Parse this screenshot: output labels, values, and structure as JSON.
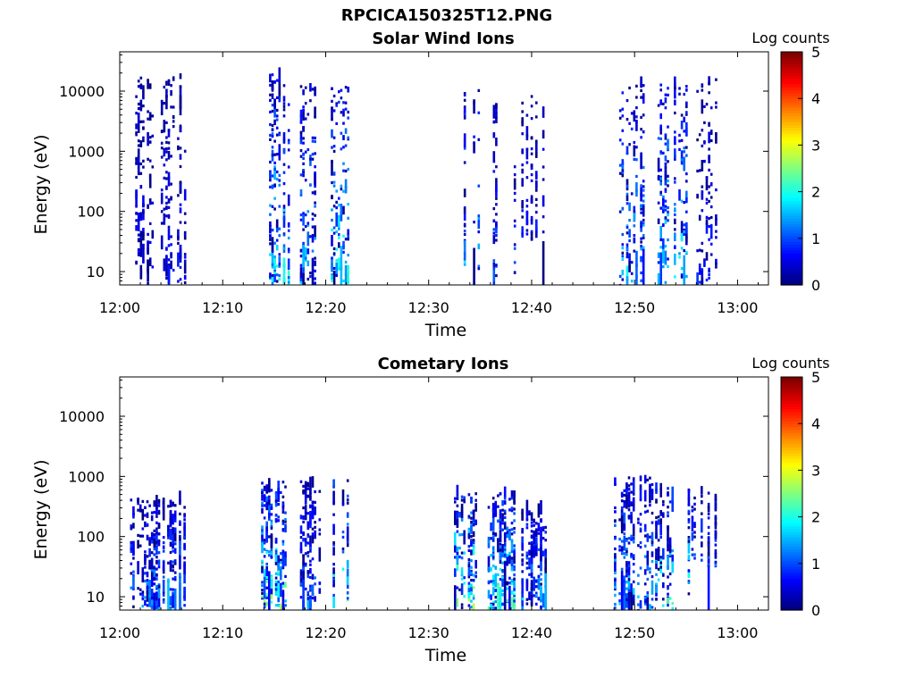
{
  "figure_title": "RPCICA150325T12.PNG",
  "chart_data": [
    {
      "type": "heatmap",
      "title": "Solar Wind Ions",
      "xlabel": "Time",
      "ylabel": "Energy (eV)",
      "x_ticks": [
        "12:00",
        "12:10",
        "12:20",
        "12:30",
        "12:40",
        "12:50",
        "13:00"
      ],
      "x_range_min": [
        0,
        63
      ],
      "y_scale": "log",
      "y_ticks": [
        10,
        100,
        1000,
        10000
      ],
      "ylim": [
        6,
        45000
      ],
      "colorbar": {
        "label": "Log counts",
        "ticks": [
          0,
          1,
          2,
          3,
          4,
          5
        ],
        "range": [
          0,
          5
        ],
        "colormap": "jet"
      },
      "bursts": [
        {
          "t": [
            1.5,
            6.5
          ],
          "e": [
            6,
            16000
          ],
          "max": 0.8
        },
        {
          "t": [
            14.5,
            16.5
          ],
          "e": [
            6,
            20000
          ],
          "max": 2.2
        },
        {
          "t": [
            17.5,
            19.5
          ],
          "e": [
            6,
            12000
          ],
          "max": 1.8
        },
        {
          "t": [
            20.5,
            22.5
          ],
          "e": [
            6,
            12000
          ],
          "max": 2.3
        },
        {
          "t": [
            32.5,
            35.0
          ],
          "e": [
            6,
            13000
          ],
          "max": 1.9
        },
        {
          "t": [
            36.0,
            38.5
          ],
          "e": [
            6,
            6000
          ],
          "max": 1.2
        },
        {
          "t": [
            39.0,
            41.5
          ],
          "e": [
            30,
            9000
          ],
          "max": 0.9
        },
        {
          "t": [
            48.5,
            51.0
          ],
          "e": [
            6,
            13000
          ],
          "max": 2.0
        },
        {
          "t": [
            52.0,
            56.0
          ],
          "e": [
            6,
            12000
          ],
          "max": 2.2
        },
        {
          "t": [
            56.0,
            58.0
          ],
          "e": [
            6,
            15000
          ],
          "max": 0.9
        }
      ]
    },
    {
      "type": "heatmap",
      "title": "Cometary Ions",
      "xlabel": "Time",
      "ylabel": "Energy (eV)",
      "x_ticks": [
        "12:00",
        "12:10",
        "12:20",
        "12:30",
        "12:40",
        "12:50",
        "13:00"
      ],
      "x_range_min": [
        0,
        63
      ],
      "y_scale": "log",
      "y_ticks": [
        10,
        100,
        1000,
        10000
      ],
      "ylim": [
        6,
        45000
      ],
      "colorbar": {
        "label": "Log counts",
        "ticks": [
          0,
          1,
          2,
          3,
          4,
          5
        ],
        "range": [
          0,
          5
        ],
        "colormap": "jet"
      },
      "bursts": [
        {
          "t": [
            1.0,
            6.5
          ],
          "e": [
            6,
            400
          ],
          "max": 1.6
        },
        {
          "t": [
            13.5,
            16.5
          ],
          "e": [
            6,
            800
          ],
          "max": 2.8
        },
        {
          "t": [
            17.5,
            19.5
          ],
          "e": [
            6,
            800
          ],
          "max": 1.5
        },
        {
          "t": [
            20.0,
            22.5
          ],
          "e": [
            6,
            900
          ],
          "max": 2.6
        },
        {
          "t": [
            32.0,
            35.0
          ],
          "e": [
            6,
            500
          ],
          "max": 3.0
        },
        {
          "t": [
            35.5,
            38.5
          ],
          "e": [
            6,
            500
          ],
          "max": 2.5
        },
        {
          "t": [
            39.0,
            41.5
          ],
          "e": [
            6,
            250
          ],
          "max": 1.8
        },
        {
          "t": [
            48.0,
            52.0
          ],
          "e": [
            6,
            900
          ],
          "max": 1.9
        },
        {
          "t": [
            52.0,
            55.5
          ],
          "e": [
            6,
            600
          ],
          "max": 2.4
        },
        {
          "t": [
            55.5,
            58.0
          ],
          "e": [
            30,
            500
          ],
          "max": 1.3
        }
      ]
    }
  ]
}
